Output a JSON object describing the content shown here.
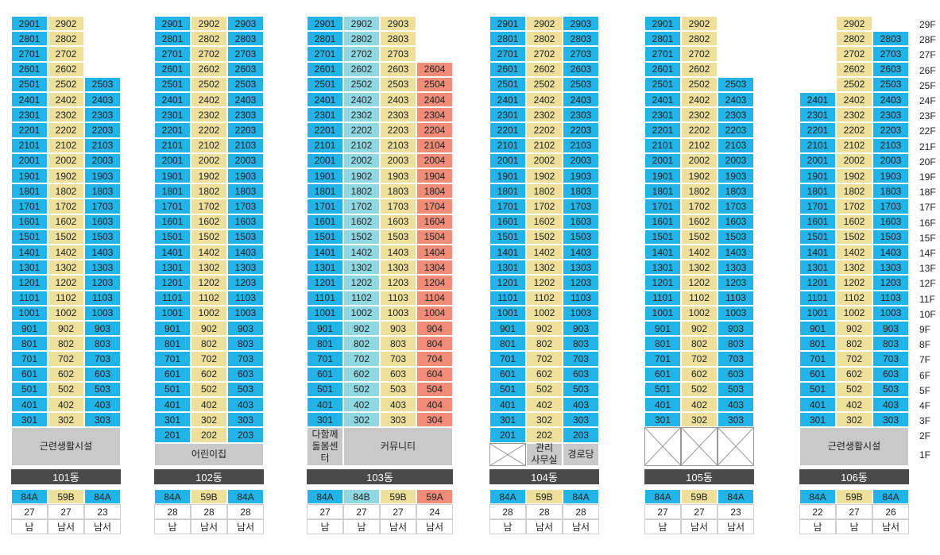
{
  "colors": {
    "blue": "#22b3e8",
    "yellow": "#eee09a",
    "teal": "#8fd8e2",
    "salmon": "#f08c77",
    "facility": "#c9c9c9",
    "label_bg": "#4a4a4a"
  },
  "floors": [
    "29F",
    "28F",
    "27F",
    "26F",
    "25F",
    "24F",
    "23F",
    "22F",
    "21F",
    "20F",
    "19F",
    "18F",
    "17F",
    "16F",
    "15F",
    "14F",
    "13F",
    "12F",
    "11F",
    "10F",
    "9F",
    "8F",
    "7F",
    "6F",
    "5F",
    "4F",
    "3F",
    "2F",
    "1F"
  ],
  "buildings": [
    {
      "name": "101동",
      "columns": [
        {
          "suffix": "01",
          "color": "blue",
          "top": 29,
          "bottom": 3
        },
        {
          "suffix": "02",
          "color": "yellow",
          "top": 29,
          "bottom": 3
        },
        {
          "suffix": "03",
          "color": "blue",
          "top": 25,
          "bottom": 3
        }
      ],
      "ground": [
        {
          "text": "근련생활시설",
          "span": [
            0,
            2
          ],
          "from": 2,
          "to": 1
        }
      ],
      "summary": {
        "types": [
          "84A",
          "59B",
          "84A"
        ],
        "type_colors": [
          "blue",
          "yellow",
          "blue"
        ],
        "counts": [
          "27",
          "27",
          "23"
        ],
        "directions": [
          "남",
          "남서",
          "남서"
        ]
      }
    },
    {
      "name": "102동",
      "columns": [
        {
          "suffix": "01",
          "color": "blue",
          "top": 29,
          "bottom": 2
        },
        {
          "suffix": "02",
          "color": "yellow",
          "top": 29,
          "bottom": 2
        },
        {
          "suffix": "03",
          "color": "blue",
          "top": 29,
          "bottom": 2
        }
      ],
      "ground": [
        {
          "text": "어린이집",
          "span": [
            0,
            2
          ],
          "from": 1,
          "to": 1
        }
      ],
      "summary": {
        "types": [
          "84A",
          "59B",
          "84A"
        ],
        "type_colors": [
          "blue",
          "yellow",
          "blue"
        ],
        "counts": [
          "28",
          "28",
          "28"
        ],
        "directions": [
          "남",
          "남서",
          "남서"
        ]
      }
    },
    {
      "name": "103동",
      "columns": [
        {
          "suffix": "01",
          "color": "blue",
          "top": 29,
          "bottom": 3
        },
        {
          "suffix": "02",
          "color": "teal",
          "top": 29,
          "bottom": 3
        },
        {
          "suffix": "03",
          "color": "yellow",
          "top": 29,
          "bottom": 3
        },
        {
          "suffix": "04",
          "color": "salmon",
          "top": 26,
          "bottom": 3
        }
      ],
      "ground": [
        {
          "text": "다함께\n돌봄센터",
          "span": [
            0,
            0
          ],
          "from": 2,
          "to": 1
        },
        {
          "text": "커뮤니티",
          "span": [
            1,
            3
          ],
          "from": 2,
          "to": 1
        }
      ],
      "summary": {
        "types": [
          "84A",
          "84B",
          "59B",
          "59A"
        ],
        "type_colors": [
          "blue",
          "teal",
          "yellow",
          "salmon"
        ],
        "counts": [
          "27",
          "27",
          "27",
          "24"
        ],
        "directions": [
          "남",
          "남",
          "남서",
          "남서"
        ]
      }
    },
    {
      "name": "104동",
      "columns": [
        {
          "suffix": "01",
          "color": "blue",
          "top": 29,
          "bottom": 2
        },
        {
          "suffix": "02",
          "color": "yellow",
          "top": 29,
          "bottom": 2
        },
        {
          "suffix": "03",
          "color": "blue",
          "top": 29,
          "bottom": 2
        }
      ],
      "ground": [
        {
          "text": "",
          "span": [
            0,
            0
          ],
          "from": 1,
          "to": 1,
          "cross": true
        },
        {
          "text": "관리\n사무실",
          "span": [
            1,
            1
          ],
          "from": 1,
          "to": 1
        },
        {
          "text": "경로당",
          "span": [
            2,
            2
          ],
          "from": 1,
          "to": 1
        }
      ],
      "summary": {
        "types": [
          "84A",
          "59B",
          "84A"
        ],
        "type_colors": [
          "blue",
          "yellow",
          "blue"
        ],
        "counts": [
          "28",
          "28",
          "28"
        ],
        "directions": [
          "남",
          "남서",
          "남서"
        ]
      }
    },
    {
      "name": "105동",
      "columns": [
        {
          "suffix": "01",
          "color": "blue",
          "top": 29,
          "bottom": 3
        },
        {
          "suffix": "02",
          "color": "yellow",
          "top": 29,
          "bottom": 3
        },
        {
          "suffix": "03",
          "color": "blue",
          "top": 25,
          "bottom": 3
        }
      ],
      "ground": [
        {
          "text": "",
          "span": [
            0,
            0
          ],
          "from": 2,
          "to": 1,
          "cross": true
        },
        {
          "text": "",
          "span": [
            1,
            1
          ],
          "from": 2,
          "to": 1,
          "cross": true
        },
        {
          "text": "",
          "span": [
            2,
            2
          ],
          "from": 2,
          "to": 1,
          "cross": true
        }
      ],
      "summary": {
        "types": [
          "84A",
          "59B",
          "84A"
        ],
        "type_colors": [
          "blue",
          "yellow",
          "blue"
        ],
        "counts": [
          "27",
          "27",
          "23"
        ],
        "directions": [
          "남",
          "남서",
          "남서"
        ]
      }
    },
    {
      "name": "106동",
      "columns": [
        {
          "suffix": "01",
          "color": "blue",
          "top": 24,
          "bottom": 3
        },
        {
          "suffix": "02",
          "color": "yellow",
          "top": 29,
          "bottom": 3
        },
        {
          "suffix": "03",
          "color": "blue",
          "top": 28,
          "bottom": 3
        }
      ],
      "ground": [
        {
          "text": "근련생활시설",
          "span": [
            0,
            2
          ],
          "from": 2,
          "to": 1
        }
      ],
      "summary": {
        "types": [
          "84A",
          "59B",
          "84A"
        ],
        "type_colors": [
          "blue",
          "yellow",
          "blue"
        ],
        "counts": [
          "22",
          "27",
          "26"
        ],
        "directions": [
          "남",
          "남",
          "남서"
        ]
      }
    }
  ]
}
